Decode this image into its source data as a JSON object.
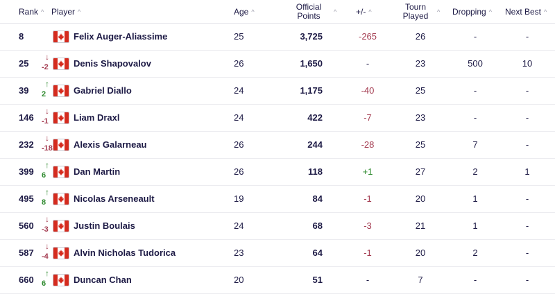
{
  "headers": {
    "rank": "Rank",
    "player": "Player",
    "age": "Age",
    "official_points_line1": "Official",
    "official_points_line2": "Points",
    "change": "+/-",
    "tourn_played_line1": "Tourn",
    "tourn_played_line2": "Played",
    "dropping": "Dropping",
    "next_best": "Next Best",
    "sort_glyph": "^"
  },
  "colors": {
    "text": "#1d1a45",
    "up": "#2e8a2e",
    "down": "#a33a4f",
    "flag_red": "#d52b1e"
  },
  "flag_icon": "canada-flag-icon",
  "rows": [
    {
      "rank": "8",
      "move_dir": "none",
      "move": "",
      "player": "Felix Auger-Aliassime",
      "age": "25",
      "points": "3,725",
      "change": "-265",
      "change_type": "neg",
      "played": "26",
      "dropping": "-",
      "next_best": "-"
    },
    {
      "rank": "25",
      "move_dir": "down",
      "move": "-2",
      "player": "Denis Shapovalov",
      "age": "26",
      "points": "1,650",
      "change": "-",
      "change_type": "neutral",
      "played": "23",
      "dropping": "500",
      "next_best": "10"
    },
    {
      "rank": "39",
      "move_dir": "up",
      "move": "2",
      "player": "Gabriel Diallo",
      "age": "24",
      "points": "1,175",
      "change": "-40",
      "change_type": "neg",
      "played": "25",
      "dropping": "-",
      "next_best": "-"
    },
    {
      "rank": "146",
      "move_dir": "down",
      "move": "-1",
      "player": "Liam Draxl",
      "age": "24",
      "points": "422",
      "change": "-7",
      "change_type": "neg",
      "played": "23",
      "dropping": "-",
      "next_best": "-"
    },
    {
      "rank": "232",
      "move_dir": "down",
      "move": "-18",
      "player": "Alexis Galarneau",
      "age": "26",
      "points": "244",
      "change": "-28",
      "change_type": "neg",
      "played": "25",
      "dropping": "7",
      "next_best": "-"
    },
    {
      "rank": "399",
      "move_dir": "up",
      "move": "6",
      "player": "Dan Martin",
      "age": "26",
      "points": "118",
      "change": "+1",
      "change_type": "pos",
      "played": "27",
      "dropping": "2",
      "next_best": "1"
    },
    {
      "rank": "495",
      "move_dir": "up",
      "move": "8",
      "player": "Nicolas Arseneault",
      "age": "19",
      "points": "84",
      "change": "-1",
      "change_type": "neg",
      "played": "20",
      "dropping": "1",
      "next_best": "-"
    },
    {
      "rank": "560",
      "move_dir": "down",
      "move": "-3",
      "player": "Justin Boulais",
      "age": "24",
      "points": "68",
      "change": "-3",
      "change_type": "neg",
      "played": "21",
      "dropping": "1",
      "next_best": "-"
    },
    {
      "rank": "587",
      "move_dir": "down",
      "move": "-4",
      "player": "Alvin Nicholas Tudorica",
      "age": "23",
      "points": "64",
      "change": "-1",
      "change_type": "neg",
      "played": "20",
      "dropping": "2",
      "next_best": "-"
    },
    {
      "rank": "660",
      "move_dir": "up",
      "move": "6",
      "player": "Duncan Chan",
      "age": "20",
      "points": "51",
      "change": "-",
      "change_type": "neutral",
      "played": "7",
      "dropping": "-",
      "next_best": "-"
    }
  ]
}
